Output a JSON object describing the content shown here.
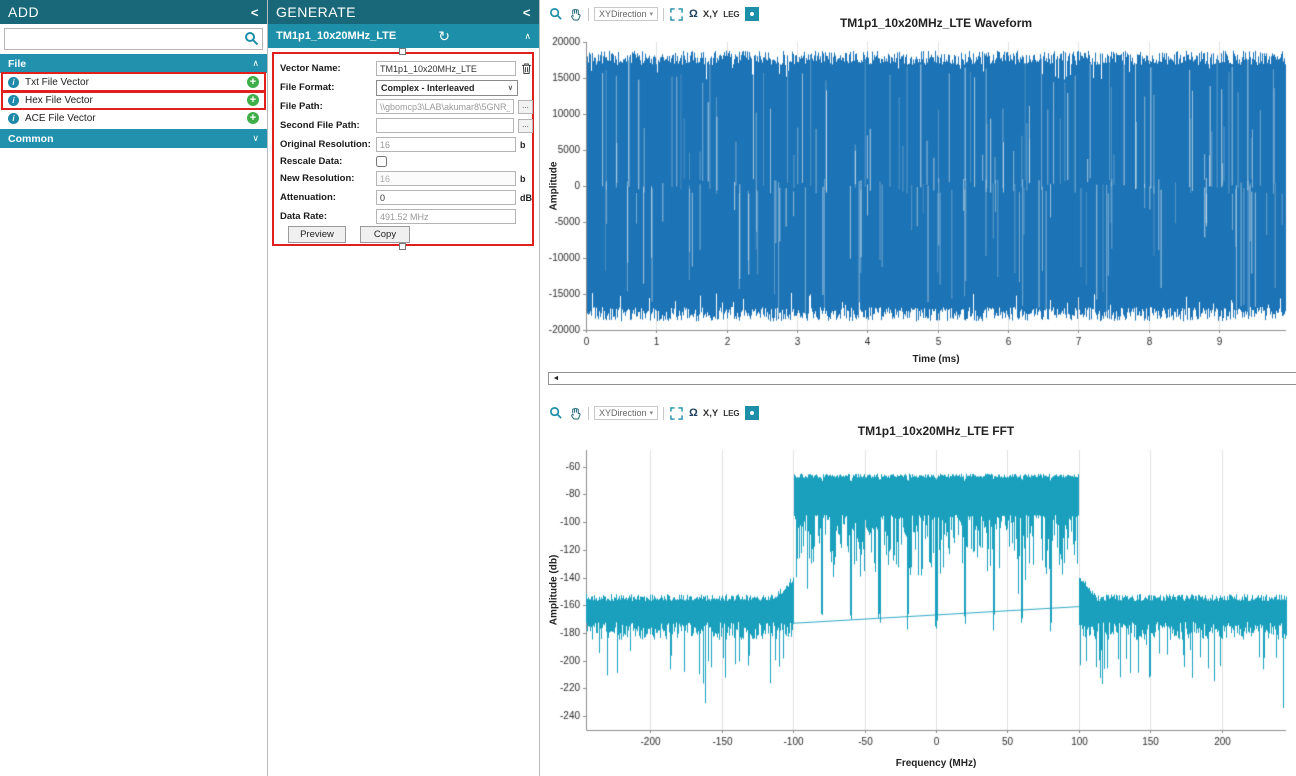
{
  "icons": {
    "collapse": "<",
    "chevron_up": "∧",
    "chevron_down": "∨",
    "caret_down": "▾",
    "refresh": "↻",
    "omega": "Ω",
    "left_arrow": "◄",
    "right_arrow": "►",
    "browse": "...",
    "info": "i",
    "plus": "+"
  },
  "add_panel": {
    "title": "ADD",
    "search_value": "",
    "sections": [
      {
        "label": "File",
        "items": [
          {
            "label": "Txt File Vector",
            "highlighted": true
          },
          {
            "label": "Hex File Vector",
            "highlighted": true
          },
          {
            "label": "ACE File Vector",
            "highlighted": false
          }
        ]
      },
      {
        "label": "Common",
        "items": []
      }
    ]
  },
  "generate_panel": {
    "title": "GENERATE",
    "vector_header": "TM1p1_10x20MHz_LTE",
    "fields": {
      "vector_name": {
        "label": "Vector Name:",
        "value": "TM1p1_10x20MHz_LTE"
      },
      "file_format": {
        "label": "File Format:",
        "value": "Complex - Interleaved"
      },
      "file_path": {
        "label": "File Path:",
        "value": "\\\\gbomcp3\\LAB\\akumar8\\5GNR_Waveforms'"
      },
      "second_file_path": {
        "label": "Second File Path:",
        "value": ""
      },
      "original_resolution": {
        "label": "Original Resolution:",
        "value": "16",
        "suffix": "b"
      },
      "rescale_data": {
        "label": "Rescale Data:",
        "checked": false
      },
      "new_resolution": {
        "label": "New Resolution:",
        "value": "16",
        "suffix": "b"
      },
      "attenuation": {
        "label": "Attenuation:",
        "value": "0",
        "suffix": "dB"
      },
      "data_rate": {
        "label": "Data Rate:",
        "value": "491.52 MHz"
      }
    },
    "preview_button": "Preview",
    "copy_button": "Copy"
  },
  "chart_toolbar": {
    "xy_direction": "XYDirection",
    "xy": "X,Y",
    "leg": "LEG"
  },
  "chart_data": [
    {
      "type": "line",
      "title": "TM1p1_10x20MHz_LTE Waveform",
      "xlabel": "Time (ms)",
      "ylabel": "Amplitude",
      "xlim": [
        0,
        9.95
      ],
      "ylim": [
        -20000,
        20000
      ],
      "x_ticks": [
        0,
        1,
        2,
        3,
        4,
        5,
        6,
        7,
        8,
        9
      ],
      "y_ticks": [
        20000,
        15000,
        10000,
        5000,
        0,
        -5000,
        -10000,
        -15000,
        -20000
      ],
      "grid": "vertical",
      "signal": {
        "kind": "dense_iq_time_noise",
        "envelope_peak": 18800,
        "envelope_min": 16800,
        "fill_color": "#1c73b5"
      }
    },
    {
      "type": "line",
      "title": "TM1p1_10x20MHz_LTE FFT",
      "xlabel": "Frequency (MHz)",
      "ylabel": "Amplitude (db)",
      "xlim": [
        -245,
        245
      ],
      "ylim": [
        -250,
        -48
      ],
      "x_ticks": [
        -200,
        -150,
        -100,
        -50,
        0,
        50,
        100,
        150,
        200
      ],
      "y_ticks": [
        -60,
        -80,
        -100,
        -120,
        -140,
        -160,
        -180,
        -200,
        -220,
        -240
      ],
      "grid": "vertical",
      "spectrum": {
        "band_edges_mhz": [
          -100,
          100
        ],
        "num_carriers": 10,
        "carrier_bw_mhz": 20,
        "inband_top_db": -65,
        "inband_noise_depth_db": [
          -95,
          -140
        ],
        "gap_spike_db": -165,
        "noise_floor_top_db": -152,
        "noise_floor_spike_db": [
          -172,
          -235
        ],
        "shoulder_peak_db": -138,
        "inner_floor_line_db": [
          -173,
          -161
        ],
        "line_color": "#1aa0bd"
      }
    }
  ]
}
